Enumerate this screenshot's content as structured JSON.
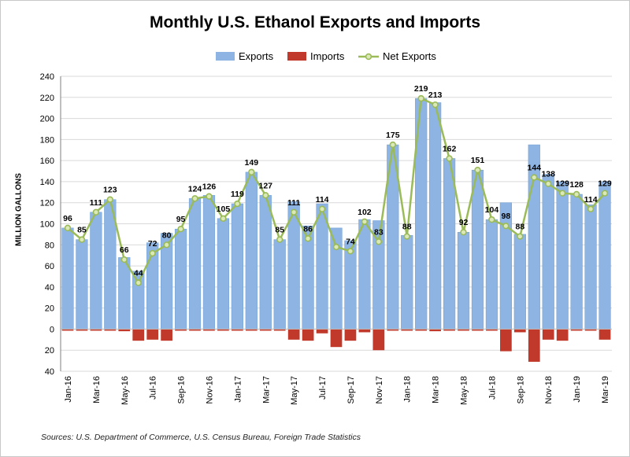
{
  "title": "Monthly U.S. Ethanol Exports and Imports",
  "source": "Sources: U.S. Department of Commerce, U.S. Census Bureau, Foreign Trade Statistics",
  "colors": {
    "exports": "#8db4e2",
    "imports": "#c0392b",
    "net": "#9bbb59",
    "grid": "#d9d9d9",
    "axis": "#7f7f7f"
  },
  "chart_data": {
    "type": "bar",
    "title": "Monthly U.S. Ethanol Exports and Imports",
    "ylabel": "MILLION GALLONS",
    "xlabel": "",
    "ylim": [
      -40,
      240
    ],
    "y_ticks": [
      -40,
      -20,
      0,
      20,
      40,
      60,
      80,
      100,
      120,
      140,
      160,
      180,
      200,
      220,
      240
    ],
    "y_tick_labels": [
      "40",
      "20",
      "0",
      "20",
      "40",
      "60",
      "80",
      "100",
      "120",
      "140",
      "160",
      "180",
      "200",
      "220",
      "240"
    ],
    "grid": true,
    "legend_position": "top",
    "categories": [
      "Jan-16",
      "Feb-16",
      "Mar-16",
      "Apr-16",
      "May-16",
      "Jun-16",
      "Jul-16",
      "Aug-16",
      "Sep-16",
      "Oct-16",
      "Nov-16",
      "Dec-16",
      "Jan-17",
      "Feb-17",
      "Mar-17",
      "Apr-17",
      "May-17",
      "Jun-17",
      "Jul-17",
      "Aug-17",
      "Sep-17",
      "Oct-17",
      "Nov-17",
      "Dec-17",
      "Jan-18",
      "Feb-18",
      "Mar-18",
      "Apr-18",
      "May-18",
      "Jun-18",
      "Jul-18",
      "Aug-18",
      "Sep-18",
      "Oct-18",
      "Nov-18",
      "Dec-18",
      "Jan-19",
      "Feb-19",
      "Mar-19"
    ],
    "x_tick_labels": [
      "Jan-16",
      "",
      "Mar-16",
      "",
      "May-16",
      "",
      "Jul-16",
      "",
      "Sep-16",
      "",
      "Nov-16",
      "",
      "Jan-17",
      "",
      "Mar-17",
      "",
      "May-17",
      "",
      "Jul-17",
      "",
      "Sep-17",
      "",
      "Nov-17",
      "",
      "Jan-18",
      "",
      "Mar-18",
      "",
      "May-18",
      "",
      "Jul-18",
      "",
      "Sep-18",
      "",
      "Nov-18",
      "",
      "Jan-19",
      "",
      "Mar-19"
    ],
    "series": [
      {
        "name": "Exports",
        "kind": "bar",
        "values": [
          96,
          85,
          111,
          123,
          68,
          55,
          82,
          91,
          95,
          124,
          127,
          105,
          119,
          149,
          127,
          85,
          121,
          98,
          119,
          96,
          84,
          104,
          103,
          175,
          89,
          219,
          215,
          162,
          92,
          151,
          104,
          120,
          90,
          175,
          147,
          140,
          128,
          118,
          140
        ]
      },
      {
        "name": "Imports",
        "kind": "bar",
        "values": [
          0,
          0,
          0,
          0,
          -2,
          -11,
          -10,
          -11,
          0,
          0,
          0,
          0,
          0,
          0,
          0,
          0,
          -10,
          -11,
          -4,
          -17,
          -11,
          -3,
          -20,
          0,
          0,
          0,
          -2,
          0,
          0,
          0,
          0,
          -21,
          -3,
          -31,
          -10,
          -11,
          0,
          0,
          -10
        ]
      },
      {
        "name": "Net Exports",
        "kind": "line",
        "values": [
          96,
          85,
          111,
          123,
          66,
          44,
          72,
          80,
          95,
          124,
          126,
          105,
          119,
          149,
          127,
          85,
          111,
          86,
          114,
          78,
          74,
          102,
          83,
          175,
          88,
          219,
          213,
          162,
          92,
          151,
          104,
          98,
          88,
          144,
          138,
          129,
          128,
          114,
          129
        ],
        "labels": [
          "96",
          "85",
          "111",
          "123",
          "66",
          "44",
          "72",
          "80",
          "95",
          "124",
          "126",
          "105",
          "119",
          "149",
          "127",
          "85",
          "111",
          "86",
          "114",
          "",
          "74",
          "102",
          "83",
          "175",
          "88",
          "219",
          "213",
          "162",
          "92",
          "151",
          "104",
          "98",
          "88",
          "144",
          "138",
          "129",
          "128",
          "114",
          "129"
        ]
      }
    ]
  }
}
